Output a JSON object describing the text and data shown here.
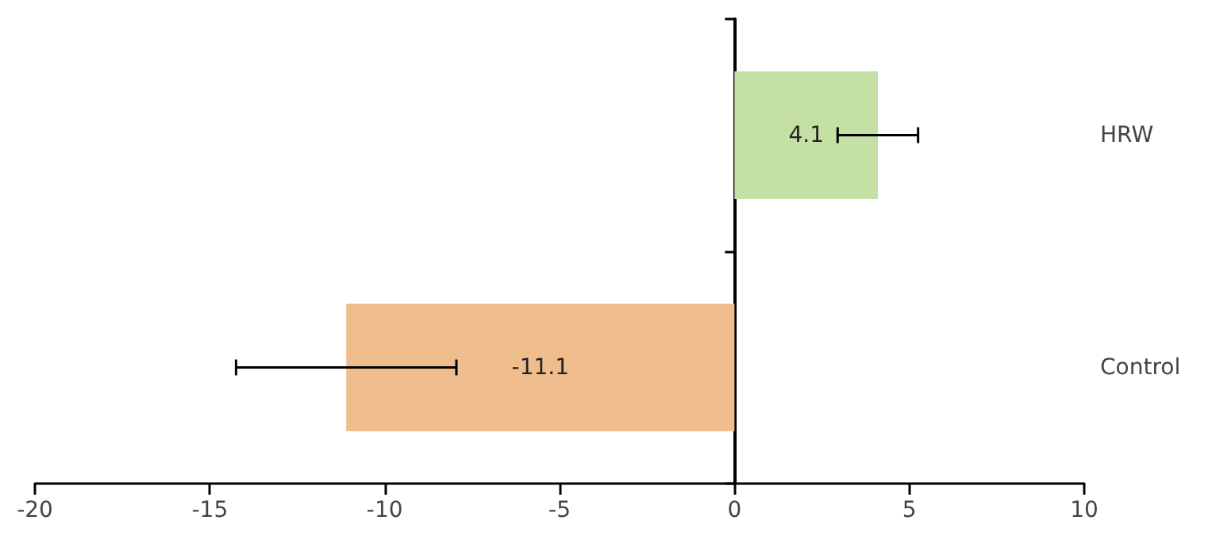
{
  "chart_data": {
    "type": "bar",
    "orientation": "horizontal",
    "categories": [
      "HRW",
      "Control"
    ],
    "values": [
      4.1,
      -11.1
    ],
    "colors": [
      "#c5e0a5",
      "#f0be8e"
    ],
    "errors": [
      1.15,
      3.15
    ],
    "data_labels": true,
    "xlim": [
      -20,
      10
    ],
    "xticks": [
      -20,
      -15,
      -10,
      -5,
      0,
      5,
      10
    ]
  }
}
